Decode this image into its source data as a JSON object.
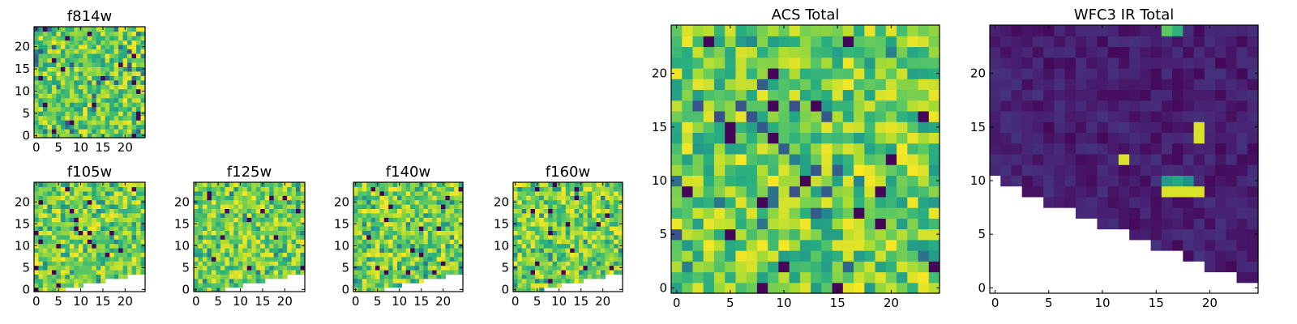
{
  "figure": {
    "panels": [
      {
        "id": "f814w",
        "title": "f814w",
        "kind": "acs"
      },
      {
        "id": "f105w",
        "title": "f105w",
        "kind": "ir_band"
      },
      {
        "id": "f125w",
        "title": "f125w",
        "kind": "ir_band"
      },
      {
        "id": "f140w",
        "title": "f140w",
        "kind": "ir_band"
      },
      {
        "id": "f160w",
        "title": "f160w",
        "kind": "ir_band"
      },
      {
        "id": "acs_total",
        "title": "ACS Total",
        "kind": "acs"
      },
      {
        "id": "wfc3_total",
        "title": "WFC3 IR Total",
        "kind": "ir_total"
      }
    ]
  },
  "chart_data": [
    {
      "type": "heatmap",
      "title": "f814w",
      "grid_size": [
        25,
        25
      ],
      "x_ticks": [
        0,
        5,
        10,
        15,
        20
      ],
      "y_ticks": [
        0,
        5,
        10,
        15,
        20
      ],
      "xlim": [
        -0.5,
        24.5
      ],
      "ylim": [
        -0.5,
        24.5
      ],
      "colormap": "viridis",
      "grid": false
    },
    {
      "type": "heatmap",
      "title": "f105w",
      "grid_size": [
        25,
        25
      ],
      "x_ticks": [
        0,
        5,
        10,
        15,
        20
      ],
      "y_ticks": [
        0,
        5,
        10,
        15,
        20
      ],
      "xlim": [
        -0.5,
        24.5
      ],
      "ylim": [
        -0.5,
        24.5
      ],
      "colormap": "viridis",
      "grid": false,
      "empty_region": "lower-right wedge"
    },
    {
      "type": "heatmap",
      "title": "f125w",
      "grid_size": [
        25,
        25
      ],
      "x_ticks": [
        0,
        5,
        10,
        15,
        20
      ],
      "y_ticks": [
        0,
        5,
        10,
        15,
        20
      ],
      "xlim": [
        -0.5,
        24.5
      ],
      "ylim": [
        -0.5,
        24.5
      ],
      "colormap": "viridis",
      "grid": false,
      "empty_region": "lower-right wedge"
    },
    {
      "type": "heatmap",
      "title": "f140w",
      "grid_size": [
        25,
        25
      ],
      "x_ticks": [
        0,
        5,
        10,
        15,
        20
      ],
      "y_ticks": [
        0,
        5,
        10,
        15,
        20
      ],
      "xlim": [
        -0.5,
        24.5
      ],
      "ylim": [
        -0.5,
        24.5
      ],
      "colormap": "viridis",
      "grid": false,
      "empty_region": "lower-right wedge"
    },
    {
      "type": "heatmap",
      "title": "f160w",
      "grid_size": [
        25,
        25
      ],
      "x_ticks": [
        0,
        5,
        10,
        15,
        20
      ],
      "y_ticks": [
        0,
        5,
        10,
        15,
        20
      ],
      "xlim": [
        -0.5,
        24.5
      ],
      "ylim": [
        -0.5,
        24.5
      ],
      "colormap": "viridis",
      "grid": false,
      "empty_region": "lower-right wedge"
    },
    {
      "type": "heatmap",
      "title": "ACS Total",
      "grid_size": [
        25,
        25
      ],
      "x_ticks": [
        0,
        5,
        10,
        15,
        20
      ],
      "y_ticks": [
        0,
        5,
        10,
        15,
        20
      ],
      "xlim": [
        -0.5,
        24.5
      ],
      "ylim": [
        -0.5,
        24.5
      ],
      "colormap": "viridis",
      "grid": false
    },
    {
      "type": "heatmap",
      "title": "WFC3 IR Total",
      "grid_size": [
        25,
        25
      ],
      "x_ticks": [
        0,
        5,
        10,
        15,
        20
      ],
      "y_ticks": [
        0,
        5,
        10,
        15,
        20
      ],
      "xlim": [
        -0.5,
        24.5
      ],
      "ylim": [
        -0.5,
        24.5
      ],
      "colormap": "viridis",
      "grid": false,
      "empty_region": "lower-left wedge below y≈11",
      "bright_pixels": [
        [
          12,
          12
        ],
        [
          16,
          9
        ],
        [
          17,
          9
        ],
        [
          18,
          9
        ],
        [
          19,
          9
        ],
        [
          19,
          14
        ],
        [
          19,
          15
        ]
      ]
    }
  ]
}
